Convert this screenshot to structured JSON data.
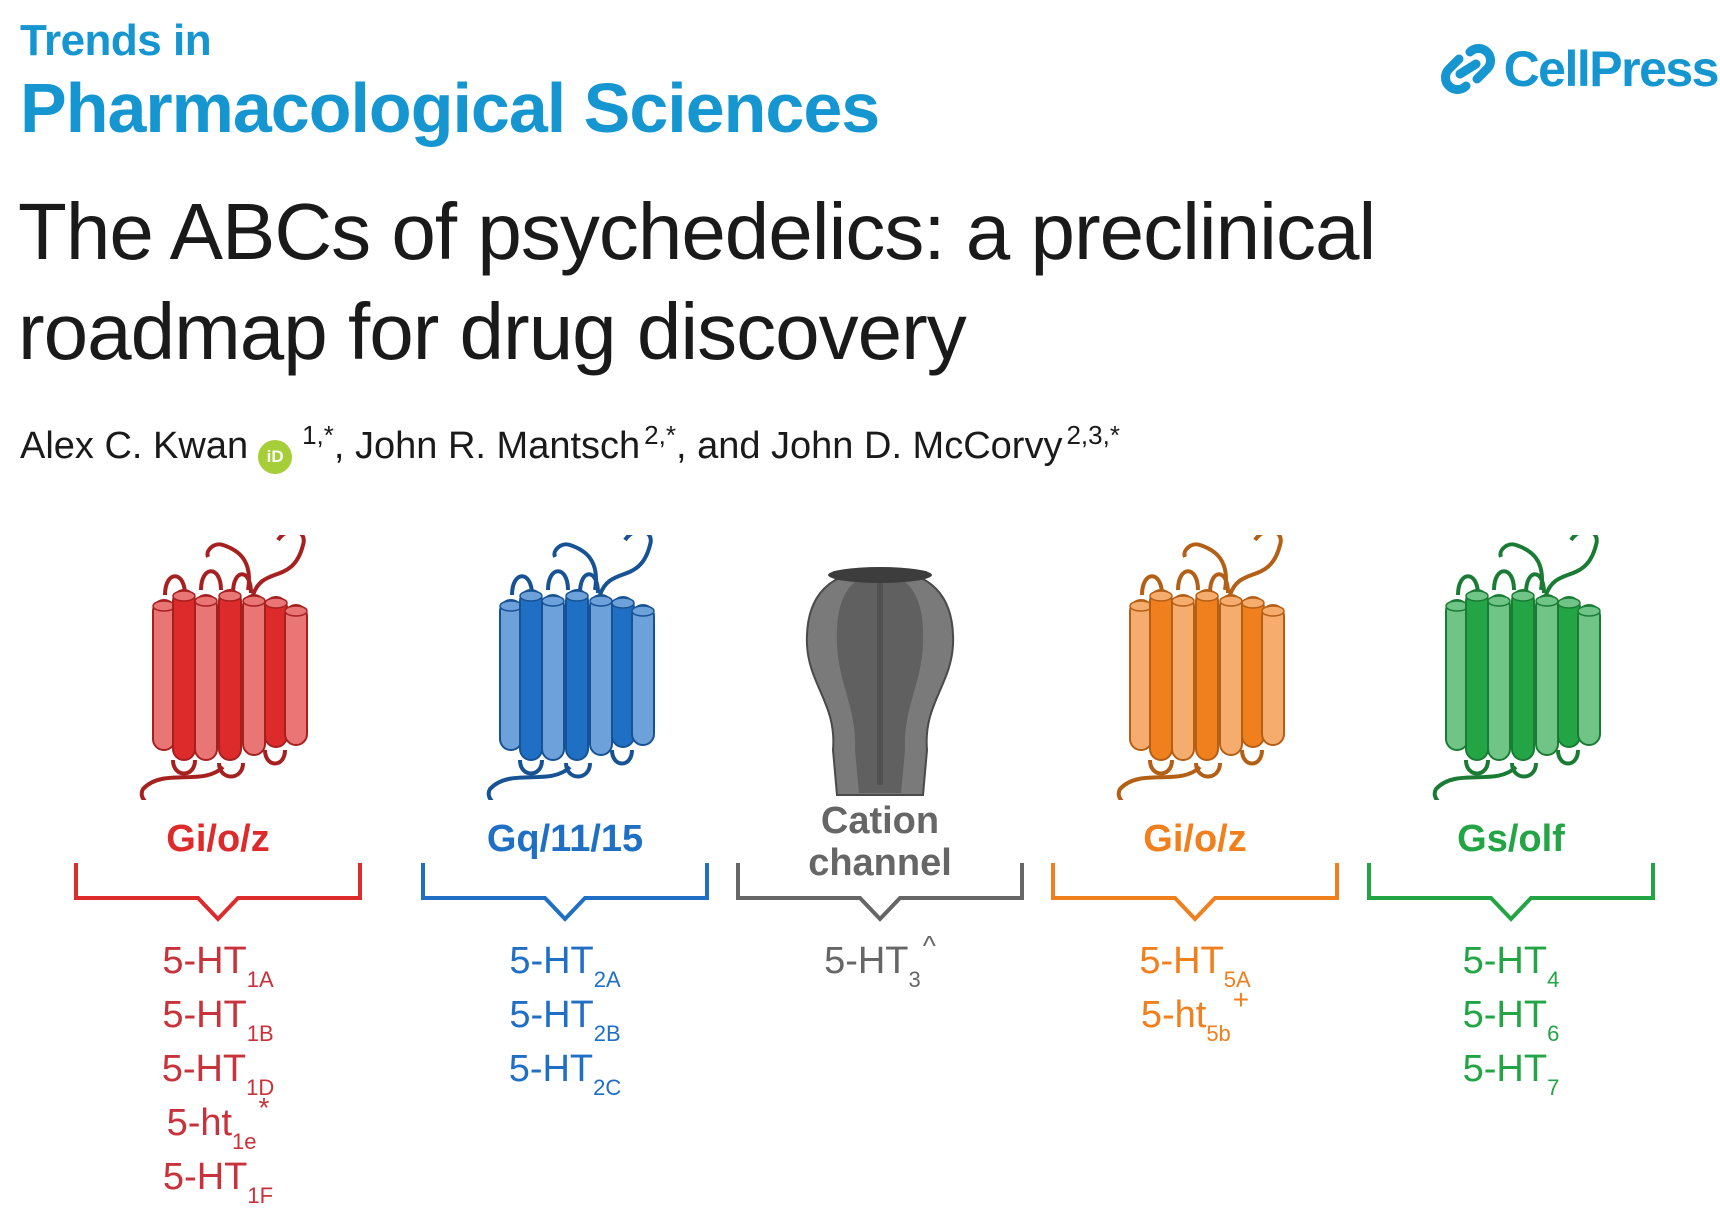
{
  "header": {
    "journal_line1": "Trends in",
    "journal_line2": "Pharmacological Sciences",
    "publisher": "CellPress",
    "brand_color": "#1596d1"
  },
  "article": {
    "title_line1": "The ABCs of psychedelics: a preclinical",
    "title_line2": "roadmap for drug discovery",
    "authors": [
      {
        "name": "Alex C. Kwan",
        "affil": "1,*",
        "orcid": "iD"
      },
      {
        "name": ", John R. Mantsch",
        "affil": "2,*"
      },
      {
        "name": ", and John D. McCorvy",
        "affil": "2,3,*"
      }
    ],
    "orcid_color": "#a6ce39"
  },
  "groups": [
    {
      "label_lines": [
        "Gi/o/z"
      ],
      "color": "#dd2a2a",
      "receptor_color": "#c8323a",
      "icon": "gpcr-receptor-icon",
      "receptors": [
        {
          "base": "5-HT",
          "sub": "1A",
          "sup": ""
        },
        {
          "base": "5-HT",
          "sub": "1B",
          "sup": ""
        },
        {
          "base": "5-HT",
          "sub": "1D",
          "sup": ""
        },
        {
          "base": "5-ht",
          "sub": "1e",
          "sup": "*"
        },
        {
          "base": "5-HT",
          "sub": "1F",
          "sup": ""
        }
      ]
    },
    {
      "label_lines": [
        "Gq/11/15"
      ],
      "color": "#1f6fc5",
      "receptor_color": "#1f6fc5",
      "icon": "gpcr-receptor-icon",
      "receptors": [
        {
          "base": "5-HT",
          "sub": "2A",
          "sup": ""
        },
        {
          "base": "5-HT",
          "sub": "2B",
          "sup": ""
        },
        {
          "base": "5-HT",
          "sub": "2C",
          "sup": ""
        }
      ]
    },
    {
      "label_lines": [
        "Cation",
        "channel"
      ],
      "color": "#666666",
      "receptor_color": "#666666",
      "icon": "ion-channel-icon",
      "receptors": [
        {
          "base": "5-HT",
          "sub": "3",
          "sup": "^"
        }
      ]
    },
    {
      "label_lines": [
        "Gi/o/z"
      ],
      "color": "#f07f1d",
      "receptor_color": "#f07f1d",
      "icon": "gpcr-receptor-icon",
      "receptors": [
        {
          "base": "5-HT",
          "sub": "5A",
          "sup": ""
        },
        {
          "base": "5-ht",
          "sub": "5b",
          "sup": "+"
        }
      ]
    },
    {
      "label_lines": [
        "Gs/olf"
      ],
      "color": "#23a545",
      "receptor_color": "#23a545",
      "icon": "gpcr-receptor-icon",
      "receptors": [
        {
          "base": "5-HT",
          "sub": "4",
          "sup": ""
        },
        {
          "base": "5-HT",
          "sub": "6",
          "sup": ""
        },
        {
          "base": "5-HT",
          "sub": "7",
          "sup": ""
        }
      ]
    }
  ]
}
